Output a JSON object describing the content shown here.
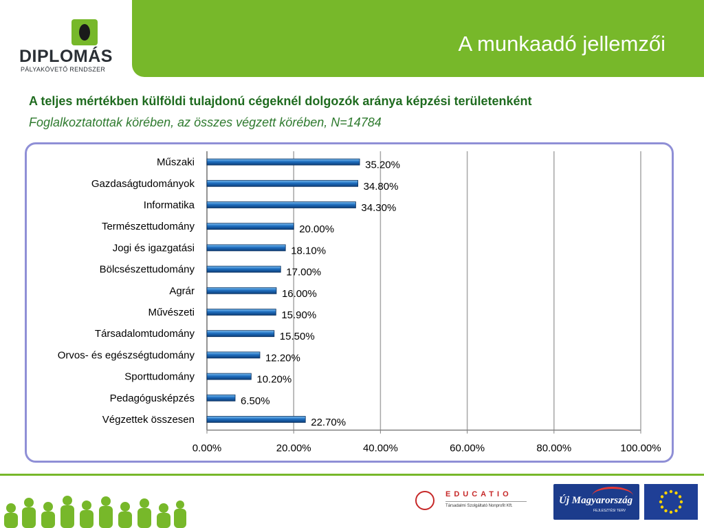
{
  "header": {
    "title": "A munkaadó jellemzői",
    "logo_name": "DIPLOMÁS",
    "logo_sub": "PÁLYAKÖVETŐ RENDSZER"
  },
  "heading": "A teljes mértékben külföldi tulajdonú cégeknél dolgozók aránya  képzési területenként",
  "subheading": "Foglalkoztatottak körében, az összes végzett körében, N=14784",
  "colors": {
    "brand_green": "#77b82a",
    "heading_green": "#1f6b1f",
    "bar_blue": "#1f6fc0",
    "frame": "#8f8fd6"
  },
  "chart_data": {
    "type": "bar",
    "orientation": "horizontal",
    "categories": [
      "Műszaki",
      "Gazdaságtudományok",
      "Informatika",
      "Természettudomány",
      "Jogi és igazgatási",
      "Bölcsészettudomány",
      "Agrár",
      "Művészeti",
      "Társadalomtudomány",
      "Orvos- és egészségtudomány",
      "Sporttudomány",
      "Pedagógusképzés",
      "Végzettek összesen"
    ],
    "values": [
      35.2,
      34.8,
      34.3,
      20.0,
      18.1,
      17.0,
      16.0,
      15.9,
      15.5,
      12.2,
      10.2,
      6.5,
      22.7
    ],
    "value_labels": [
      "35.20%",
      "34.80%",
      "34.30%",
      "20.00%",
      "18.10%",
      "17.00%",
      "16.00%",
      "15.90%",
      "15.50%",
      "12.20%",
      "10.20%",
      "6.50%",
      "22.70%"
    ],
    "xlim": [
      0,
      100
    ],
    "xticks": [
      0,
      20,
      40,
      60,
      80,
      100
    ],
    "xtick_labels": [
      "0.00%",
      "20.00%",
      "40.00%",
      "60.00%",
      "80.00%",
      "100.00%"
    ],
    "grid": "vertical",
    "legend": "none"
  },
  "footer": {
    "educatio_name": "EDUCATIO",
    "educatio_sub": "Társadalmi Szolgáltató Nonprofit Kft.",
    "umft_name": "Új Magyarország",
    "umft_sub": "FEJLESZTÉSI TERV"
  }
}
